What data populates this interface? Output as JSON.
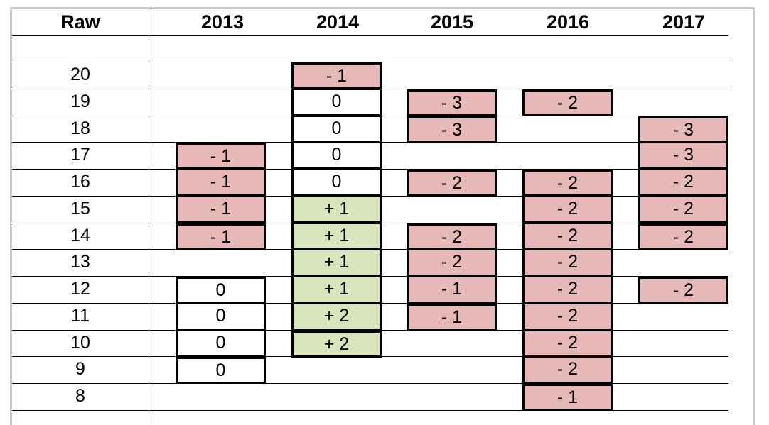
{
  "columns": [
    "Raw",
    "2013",
    "2014",
    "2015",
    "2016",
    "2017"
  ],
  "rows": [
    {
      "raw": "20",
      "cells": [
        null,
        {
          "text": "- 1",
          "fill": "red"
        },
        null,
        null,
        null
      ]
    },
    {
      "raw": "19",
      "cells": [
        null,
        {
          "text": "0",
          "fill": "white"
        },
        {
          "text": "- 3",
          "fill": "red"
        },
        {
          "text": "- 2",
          "fill": "red"
        },
        null
      ]
    },
    {
      "raw": "18",
      "cells": [
        null,
        {
          "text": "0",
          "fill": "white"
        },
        {
          "text": "- 3",
          "fill": "red"
        },
        null,
        {
          "text": "- 3",
          "fill": "red"
        }
      ]
    },
    {
      "raw": "17",
      "cells": [
        {
          "text": "- 1",
          "fill": "red"
        },
        {
          "text": "0",
          "fill": "white"
        },
        null,
        null,
        {
          "text": "- 3",
          "fill": "red"
        }
      ]
    },
    {
      "raw": "16",
      "cells": [
        {
          "text": "- 1",
          "fill": "red"
        },
        {
          "text": "0",
          "fill": "white"
        },
        {
          "text": "- 2",
          "fill": "red"
        },
        {
          "text": "- 2",
          "fill": "red"
        },
        {
          "text": "- 2",
          "fill": "red"
        }
      ]
    },
    {
      "raw": "15",
      "cells": [
        {
          "text": "- 1",
          "fill": "red"
        },
        {
          "text": "+ 1",
          "fill": "green"
        },
        null,
        {
          "text": "- 2",
          "fill": "red"
        },
        {
          "text": "- 2",
          "fill": "red"
        }
      ]
    },
    {
      "raw": "14",
      "cells": [
        {
          "text": "- 1",
          "fill": "red"
        },
        {
          "text": "+ 1",
          "fill": "green"
        },
        {
          "text": "- 2",
          "fill": "red"
        },
        {
          "text": "- 2",
          "fill": "red"
        },
        {
          "text": "- 2",
          "fill": "red"
        }
      ]
    },
    {
      "raw": "13",
      "cells": [
        null,
        {
          "text": "+ 1",
          "fill": "green"
        },
        {
          "text": "- 2",
          "fill": "red"
        },
        {
          "text": "- 2",
          "fill": "red"
        },
        null
      ]
    },
    {
      "raw": "12",
      "cells": [
        {
          "text": "0",
          "fill": "white"
        },
        {
          "text": "+ 1",
          "fill": "green"
        },
        {
          "text": "- 1",
          "fill": "red"
        },
        {
          "text": "- 2",
          "fill": "red"
        },
        {
          "text": "- 2",
          "fill": "red"
        }
      ]
    },
    {
      "raw": "11",
      "cells": [
        {
          "text": "0",
          "fill": "white"
        },
        {
          "text": "+ 2",
          "fill": "green"
        },
        {
          "text": "- 1",
          "fill": "red"
        },
        {
          "text": "- 2",
          "fill": "red"
        },
        null
      ]
    },
    {
      "raw": "10",
      "cells": [
        {
          "text": "0",
          "fill": "white"
        },
        {
          "text": "+ 2",
          "fill": "green"
        },
        null,
        {
          "text": "- 2",
          "fill": "red"
        },
        null
      ]
    },
    {
      "raw": "9",
      "cells": [
        {
          "text": "0",
          "fill": "white"
        },
        null,
        null,
        {
          "text": "- 2",
          "fill": "red"
        },
        null
      ]
    },
    {
      "raw": "8",
      "cells": [
        null,
        null,
        null,
        {
          "text": "- 1",
          "fill": "red"
        },
        null
      ]
    }
  ],
  "colors": {
    "red": "#e6b9b8",
    "green": "#d8e4bc",
    "white": "#ffffff",
    "border": "#000000",
    "frame": "#c8c8c8"
  }
}
